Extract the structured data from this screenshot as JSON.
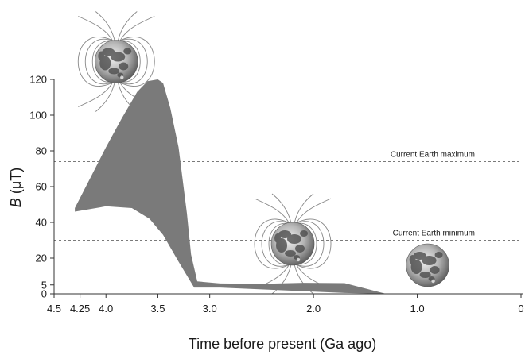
{
  "chart_data": {
    "type": "area",
    "xlabel": "Time before present (Ga ago)",
    "ylabel_var": "B",
    "ylabel_unit": " (μT)",
    "x_axis": {
      "range": [
        4.5,
        0
      ],
      "reversed": true,
      "ticks": [
        4.5,
        4.25,
        4.0,
        3.5,
        3.0,
        2.0,
        1.0,
        0
      ],
      "tick_labels": [
        "4.5",
        "4.25",
        "4.0",
        "3.5",
        "3.0",
        "2.0",
        "1.0",
        "0"
      ]
    },
    "y_axis": {
      "range": [
        0,
        120
      ],
      "ticks": [
        0,
        5,
        20,
        40,
        60,
        80,
        100,
        120
      ],
      "tick_labels": [
        "0",
        "5",
        "20",
        "40",
        "60",
        "80",
        "100",
        "120"
      ]
    },
    "band": {
      "color": "#7a7a7a",
      "upper": [
        [
          4.3,
          48
        ],
        [
          4.15,
          65
        ],
        [
          4.0,
          82
        ],
        [
          3.85,
          98
        ],
        [
          3.7,
          113
        ],
        [
          3.6,
          119
        ],
        [
          3.5,
          120
        ],
        [
          3.45,
          118
        ],
        [
          3.38,
          104
        ],
        [
          3.3,
          82
        ],
        [
          3.22,
          45
        ],
        [
          3.18,
          22
        ],
        [
          3.12,
          7
        ],
        [
          2.9,
          5.8
        ],
        [
          2.5,
          5.6
        ],
        [
          2.1,
          6.2
        ],
        [
          1.7,
          6.0
        ],
        [
          1.5,
          3
        ],
        [
          1.3,
          0
        ]
      ],
      "lower": [
        [
          1.3,
          0
        ],
        [
          1.7,
          0.5
        ],
        [
          2.1,
          1.5
        ],
        [
          2.5,
          2.5
        ],
        [
          2.9,
          3.5
        ],
        [
          3.15,
          3.5
        ],
        [
          3.3,
          18
        ],
        [
          3.45,
          33
        ],
        [
          3.58,
          42
        ],
        [
          3.75,
          48
        ],
        [
          4.0,
          49
        ],
        [
          4.3,
          46
        ]
      ]
    },
    "reference_lines": [
      {
        "label": "Current Earth maximum",
        "y": 74
      },
      {
        "label": "Current Earth minimum",
        "y": 30
      }
    ],
    "moon_icons": [
      {
        "name": "moon-with-strong-field-icon",
        "x": 3.9,
        "y": 130
      },
      {
        "name": "moon-with-weak-field-icon",
        "x": 2.2,
        "y": 28
      },
      {
        "name": "moon-without-field-icon",
        "x": 0.9,
        "y": 16
      }
    ],
    "grid": false,
    "legend": "none"
  }
}
